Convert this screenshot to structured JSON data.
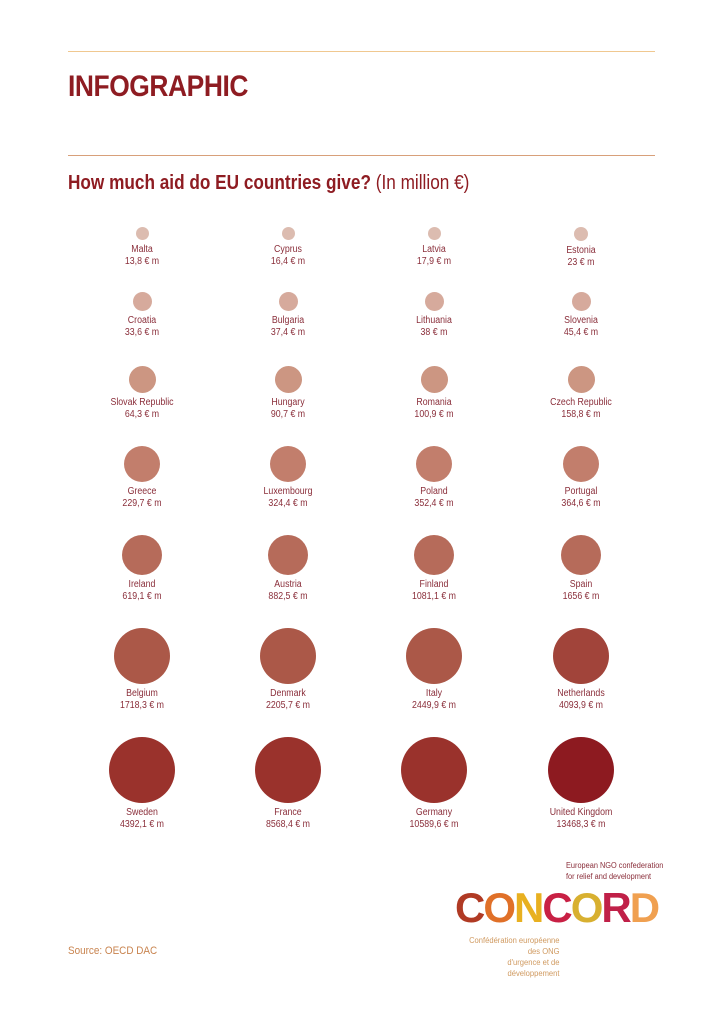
{
  "header": {
    "title": "INFOGRAPHIC",
    "question": "How much aid do EU countries give?",
    "unit": " (In million €)"
  },
  "chart_data": {
    "type": "bubble",
    "title": "How much aid do EU countries give? (In million €)",
    "unit": "million €",
    "categories": [
      "Malta",
      "Cyprus",
      "Latvia",
      "Estonia",
      "Croatia",
      "Bulgaria",
      "Lithuania",
      "Slovenia",
      "Slovak Republic",
      "Hungary",
      "Romania",
      "Czech Republic",
      "Greece",
      "Luxembourg",
      "Poland",
      "Portugal",
      "Ireland",
      "Austria",
      "Finland",
      "Spain",
      "Belgium",
      "Denmark",
      "Italy",
      "Netherlands",
      "Sweden",
      "France",
      "Germany",
      "United Kingdom"
    ],
    "values": [
      13.8,
      16.4,
      17.9,
      23,
      33.6,
      37.4,
      38,
      45.4,
      64.3,
      90.7,
      100.9,
      158.8,
      229.7,
      324.4,
      352.4,
      364.6,
      619.1,
      882.5,
      1081.1,
      1656,
      1718.3,
      2205.7,
      2449.9,
      4093.9,
      4392.1,
      8568.4,
      10589.6,
      13468.3
    ],
    "layout": "grid 4 columns x 7 rows, bubble size and color intensity increase with value"
  },
  "countries": [
    {
      "name": "Malta",
      "value": "13,8 € m",
      "size": 13,
      "color": "#dcbcb0"
    },
    {
      "name": "Cyprus",
      "value": "16,4 € m",
      "size": 13,
      "color": "#dcbcb0"
    },
    {
      "name": "Latvia",
      "value": "17,9 € m",
      "size": 13,
      "color": "#dcbcb0"
    },
    {
      "name": "Estonia",
      "value": "23 € m",
      "size": 14,
      "color": "#dcbcb0"
    },
    {
      "name": "Croatia",
      "value": "33,6 € m",
      "size": 19,
      "color": "#d6aa9c"
    },
    {
      "name": "Bulgaria",
      "value": "37,4 € m",
      "size": 19,
      "color": "#d6aa9c"
    },
    {
      "name": "Lithuania",
      "value": "38 € m",
      "size": 19,
      "color": "#d6aa9c"
    },
    {
      "name": "Slovenia",
      "value": "45,4 € m",
      "size": 19,
      "color": "#d6aa9c"
    },
    {
      "name": "Slovak Republic",
      "value": "64,3 € m",
      "size": 27,
      "color": "#cc9682"
    },
    {
      "name": "Hungary",
      "value": "90,7 € m",
      "size": 27,
      "color": "#cc9682"
    },
    {
      "name": "Romania",
      "value": "100,9 € m",
      "size": 27,
      "color": "#cc9682"
    },
    {
      "name": "Czech Republic",
      "value": "158,8 € m",
      "size": 27,
      "color": "#cc9682"
    },
    {
      "name": "Greece",
      "value": "229,7 € m",
      "size": 36,
      "color": "#c27e6c"
    },
    {
      "name": "Luxembourg",
      "value": "324,4 € m",
      "size": 36,
      "color": "#c27e6c"
    },
    {
      "name": "Poland",
      "value": "352,4 € m",
      "size": 36,
      "color": "#c27e6c"
    },
    {
      "name": "Portugal",
      "value": "364,6 € m",
      "size": 36,
      "color": "#c27e6c"
    },
    {
      "name": "Ireland",
      "value": "619,1 € m",
      "size": 40,
      "color": "#b66b5a"
    },
    {
      "name": "Austria",
      "value": "882,5 € m",
      "size": 40,
      "color": "#b66b5a"
    },
    {
      "name": "Finland",
      "value": "1081,1 € m",
      "size": 40,
      "color": "#b66b5a"
    },
    {
      "name": "Spain",
      "value": "1656 € m",
      "size": 40,
      "color": "#b66b5a"
    },
    {
      "name": "Belgium",
      "value": "1718,3 € m",
      "size": 56,
      "color": "#ab5848"
    },
    {
      "name": "Denmark",
      "value": "2205,7 € m",
      "size": 56,
      "color": "#ab5848"
    },
    {
      "name": "Italy",
      "value": "2449,9 € m",
      "size": 56,
      "color": "#ab5848"
    },
    {
      "name": "Netherlands",
      "value": "4093,9 € m",
      "size": 56,
      "color": "#a1443a"
    },
    {
      "name": "Sweden",
      "value": "4392,1 € m",
      "size": 66,
      "color": "#9a322c"
    },
    {
      "name": "France",
      "value": "8568,4 € m",
      "size": 66,
      "color": "#9a322c"
    },
    {
      "name": "Germany",
      "value": "10589,6 € m",
      "size": 66,
      "color": "#9a322c"
    },
    {
      "name": "United Kingdom",
      "value": "13468,3 € m",
      "size": 66,
      "color": "#8d1a20"
    }
  ],
  "footer": {
    "source": "Source: OECD DAC",
    "logo_tagline_en": "European NGO confederation for relief and development",
    "logo_tagline_en_line1": "European NGO confederation",
    "logo_tagline_en_line2": "for relief and development",
    "logo_letters": [
      {
        "ch": "C",
        "color": "#b03a24"
      },
      {
        "ch": "O",
        "color": "#e07028"
      },
      {
        "ch": "N",
        "color": "#e8b020"
      },
      {
        "ch": "C",
        "color": "#c82044"
      },
      {
        "ch": "O",
        "color": "#d8b030"
      },
      {
        "ch": "R",
        "color": "#c02048"
      },
      {
        "ch": "D",
        "color": "#f0a050"
      }
    ],
    "logo_tagline_fr_line1": "Confédération européenne des ONG",
    "logo_tagline_fr_line2": "d'urgence et de développement"
  }
}
